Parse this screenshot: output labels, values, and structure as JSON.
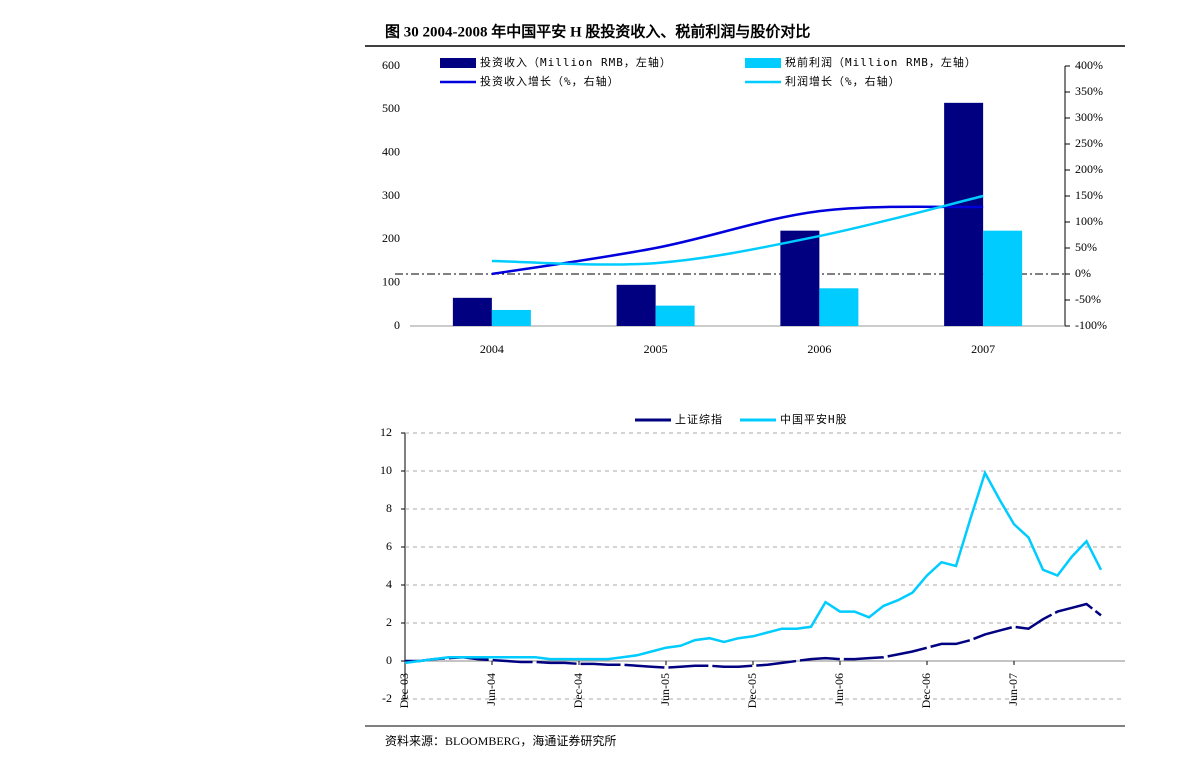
{
  "figure_title": "图 30   2004-2008 年中国平安 H 股投资收入、税前利润与股价对比",
  "source": "资料来源：BLOOMBERG，海通证券研究所",
  "chart_data": [
    {
      "type": "bar_line",
      "categories": [
        "2004",
        "2005",
        "2006",
        "2007"
      ],
      "series": [
        {
          "name": "投资收入（Million RMB，左轴）",
          "color": "#000080",
          "kind": "bar",
          "values": [
            65,
            95,
            220,
            515
          ]
        },
        {
          "name": "税前利润（Million RMB，左轴）",
          "color": "#00ccff",
          "kind": "bar",
          "values": [
            37,
            47,
            87,
            220
          ]
        },
        {
          "name": "投资收入增长（%，右轴）",
          "color": "#0000dd",
          "kind": "line",
          "axis": "y2",
          "values": [
            0,
            50,
            121,
            129
          ]
        },
        {
          "name": "利润增长（%，右轴）",
          "color": "#00ccff",
          "kind": "line",
          "axis": "y2",
          "values": [
            25,
            21,
            73,
            150
          ]
        }
      ],
      "ylim": [
        0,
        600
      ],
      "yticks": [
        0,
        100,
        200,
        300,
        400,
        500,
        600
      ],
      "y2lim": [
        -100,
        400
      ],
      "y2ticks": [
        {
          "value": -100,
          "label": "-100%"
        },
        {
          "value": -50,
          "label": "-50%"
        },
        {
          "value": 0,
          "label": "0%"
        },
        {
          "value": 50,
          "label": "50%"
        },
        {
          "value": 100,
          "label": "100%"
        },
        {
          "value": 150,
          "label": "150%"
        },
        {
          "value": 200,
          "label": "200%"
        },
        {
          "value": 250,
          "label": "250%"
        },
        {
          "value": 300,
          "label": "300%"
        },
        {
          "value": 350,
          "label": "350%"
        },
        {
          "value": 400,
          "label": "400%"
        }
      ]
    },
    {
      "type": "line",
      "categories": [
        "Dec-03",
        null,
        null,
        null,
        null,
        null,
        "Jun-04",
        null,
        null,
        null,
        null,
        null,
        "Dec-04",
        null,
        null,
        null,
        null,
        null,
        "Jun-05",
        null,
        null,
        null,
        null,
        null,
        "Dec-05",
        null,
        null,
        null,
        null,
        null,
        "Jun-06",
        null,
        null,
        null,
        null,
        null,
        "Dec-06",
        null,
        null,
        null,
        null,
        null,
        "Jun-07",
        null,
        null,
        null,
        null,
        null,
        null
      ],
      "series": [
        {
          "name": "上证综指",
          "color": "#000080",
          "values": [
            0,
            0,
            0.1,
            0.15,
            0.2,
            0.1,
            0.05,
            0,
            -0.05,
            -0.05,
            -0.1,
            -0.1,
            -0.15,
            -0.15,
            -0.2,
            -0.2,
            -0.25,
            -0.3,
            -0.35,
            -0.3,
            -0.25,
            -0.25,
            -0.3,
            -0.3,
            -0.25,
            -0.2,
            -0.1,
            0,
            0.1,
            0.15,
            0.1,
            0.1,
            0.15,
            0.2,
            0.35,
            0.5,
            0.7,
            0.9,
            0.9,
            1.1,
            1.4,
            1.6,
            1.8,
            1.7,
            2.2,
            2.6,
            2.8,
            3.0,
            2.4
          ]
        },
        {
          "name": "中国平安H股",
          "color": "#00ccff",
          "values": [
            -0.1,
            0,
            0.1,
            0.2,
            0.2,
            0.2,
            0.2,
            0.2,
            0.2,
            0.2,
            0.1,
            0.1,
            0.1,
            0.1,
            0.1,
            0.2,
            0.3,
            0.5,
            0.7,
            0.8,
            1.1,
            1.2,
            1.0,
            1.2,
            1.3,
            1.5,
            1.7,
            1.7,
            1.8,
            3.1,
            2.6,
            2.6,
            2.3,
            2.9,
            3.2,
            3.6,
            4.5,
            5.2,
            5.0,
            7.5,
            9.9,
            8.5,
            7.2,
            6.5,
            4.8,
            4.5,
            5.5,
            6.3,
            4.8
          ]
        }
      ],
      "ylim": [
        -2,
        12
      ],
      "yticks": [
        -2,
        0,
        2,
        4,
        6,
        8,
        10,
        12
      ],
      "grid": true
    }
  ]
}
